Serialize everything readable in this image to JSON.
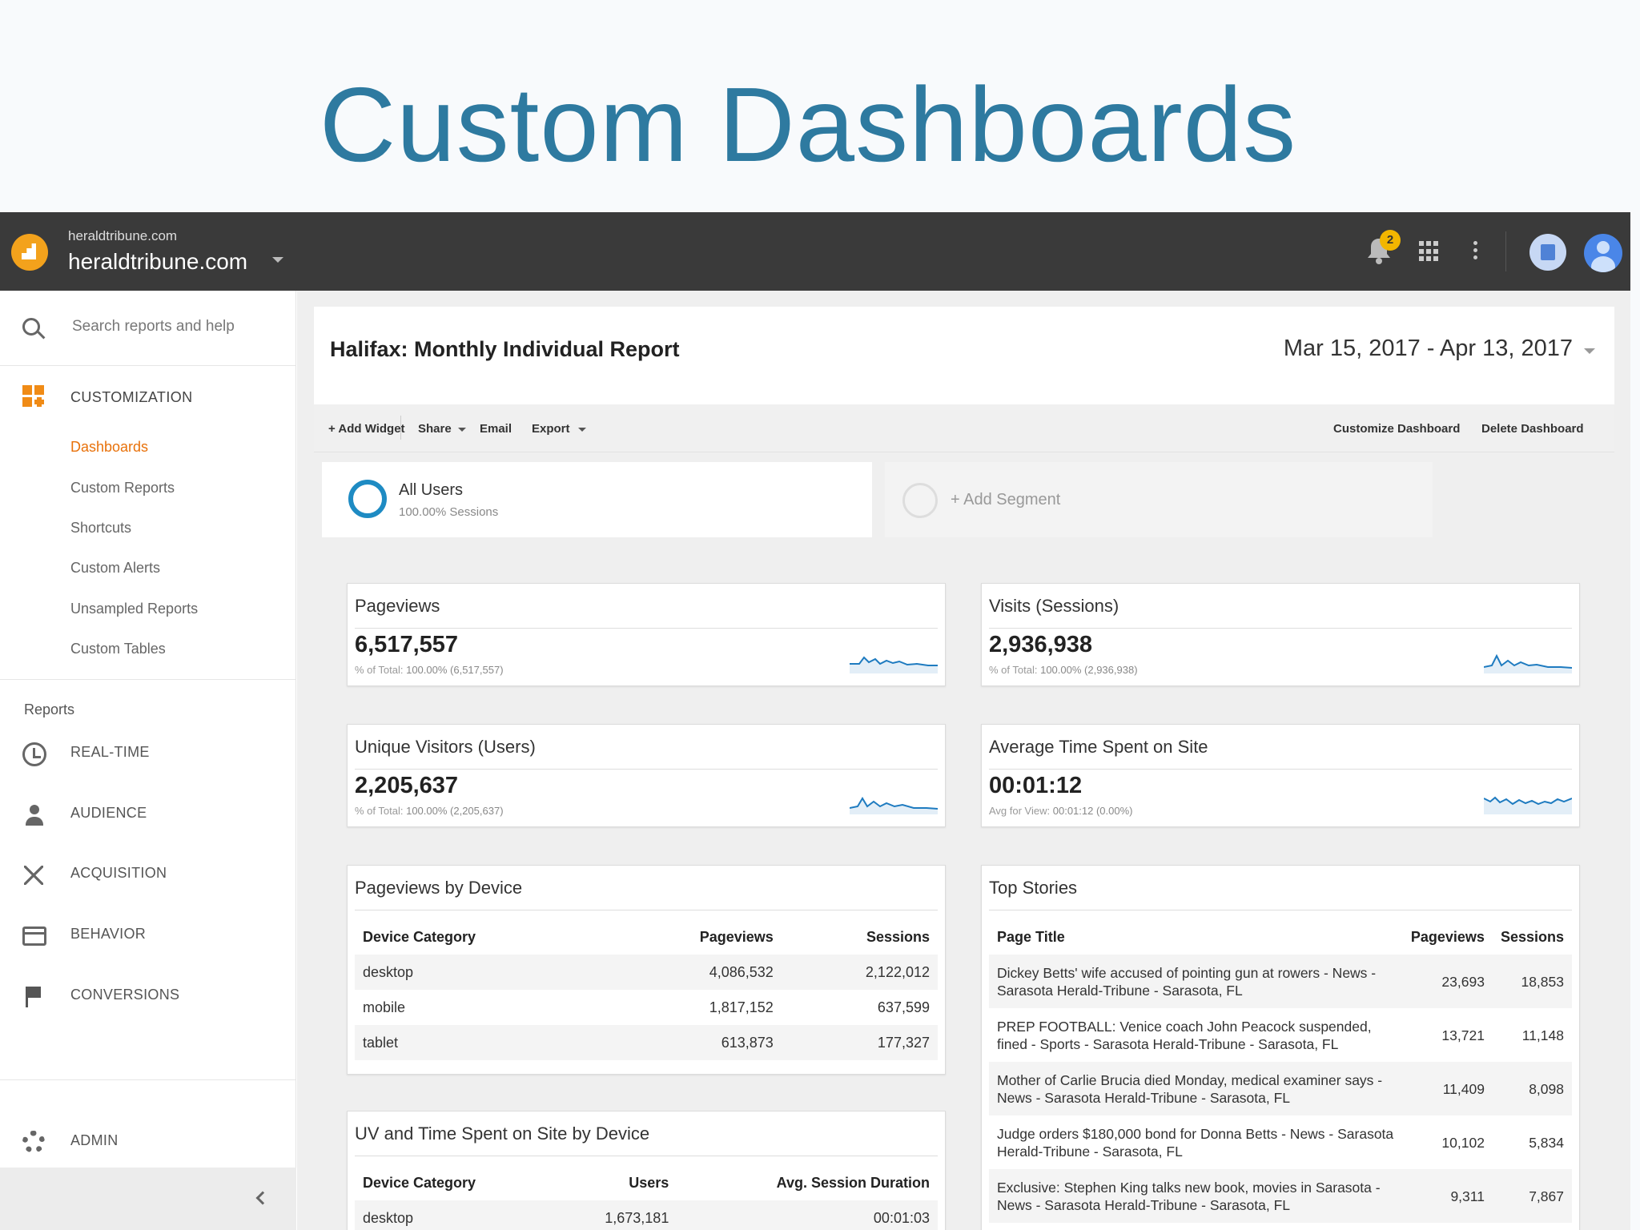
{
  "slide": {
    "title": "Custom Dashboards"
  },
  "topbar": {
    "account_small": "heraldtribune.com",
    "account_name": "heraldtribune.com",
    "notification_count": "2",
    "colors": {
      "bar": "#3a3a3a",
      "logo": "#f3a21c",
      "badge": "#f2b600"
    }
  },
  "sidebar": {
    "search_placeholder": "Search reports and help",
    "customization_label": "CUSTOMIZATION",
    "customization_items": [
      {
        "label": "Dashboards",
        "active": true
      },
      {
        "label": "Custom Reports"
      },
      {
        "label": "Shortcuts"
      },
      {
        "label": "Custom Alerts"
      },
      {
        "label": "Unsampled Reports"
      },
      {
        "label": "Custom Tables"
      }
    ],
    "reports_label": "Reports",
    "nav": [
      {
        "label": "REAL-TIME",
        "icon": "clock-icon"
      },
      {
        "label": "AUDIENCE",
        "icon": "person-icon"
      },
      {
        "label": "ACQUISITION",
        "icon": "acquisition-icon"
      },
      {
        "label": "BEHAVIOR",
        "icon": "behavior-icon"
      },
      {
        "label": "CONVERSIONS",
        "icon": "flag-icon"
      }
    ],
    "admin_label": "ADMIN",
    "accent_color": "#e8710a"
  },
  "dashboard": {
    "title": "Halifax: Monthly Individual Report",
    "date_range": "Mar 15, 2017 - Apr 13, 2017",
    "toolbar": {
      "add_widget": "+ Add Widget",
      "share": "Share",
      "email": "Email",
      "export": "Export",
      "customize": "Customize Dashboard",
      "delete": "Delete Dashboard"
    },
    "segments": {
      "all_users": "All Users",
      "all_users_sub": "100.00% Sessions",
      "add_segment": "+ Add Segment"
    },
    "widgets": {
      "pageviews": {
        "title": "Pageviews",
        "value": "6,517,557",
        "sub_label": "% of Total:",
        "sub_value": "100.00% (6,517,557)"
      },
      "visits": {
        "title": "Visits (Sessions)",
        "value": "2,936,938",
        "sub_label": "% of Total:",
        "sub_value": "100.00% (2,936,938)"
      },
      "unique": {
        "title": "Unique Visitors (Users)",
        "value": "2,205,637",
        "sub_label": "% of Total:",
        "sub_value": "100.00% (2,205,637)"
      },
      "avgtime": {
        "title": "Average Time Spent on Site",
        "value": "00:01:12",
        "sub_label": "Avg for View:",
        "sub_value": "00:01:12 (0.00%)"
      }
    },
    "device_table": {
      "title": "Pageviews by Device",
      "headers": [
        "Device Category",
        "Pageviews",
        "Sessions"
      ],
      "rows": [
        [
          "desktop",
          "4,086,532",
          "2,122,012"
        ],
        [
          "mobile",
          "1,817,152",
          "637,599"
        ],
        [
          "tablet",
          "613,873",
          "177,327"
        ]
      ]
    },
    "uv_table": {
      "title": "UV and Time Spent on Site by Device",
      "headers": [
        "Device Category",
        "Users",
        "Avg. Session Duration"
      ],
      "rows": [
        [
          "desktop",
          "1,673,181",
          "00:01:03"
        ]
      ]
    },
    "stories_table": {
      "title": "Top Stories",
      "headers": [
        "Page Title",
        "Pageviews",
        "Sessions"
      ],
      "rows": [
        [
          "Dickey Betts' wife accused of pointing gun at rowers - News - Sarasota Herald-Tribune - Sarasota, FL",
          "23,693",
          "18,853"
        ],
        [
          "PREP FOOTBALL: Venice coach John Peacock suspended, fined - Sports - Sarasota Herald-Tribune - Sarasota, FL",
          "13,721",
          "11,148"
        ],
        [
          "Mother of Carlie Brucia died Monday, medical examiner says - News - Sarasota Herald-Tribune - Sarasota, FL",
          "11,409",
          "8,098"
        ],
        [
          "Judge orders $180,000 bond for Donna Betts - News - Sarasota Herald-Tribune - Sarasota, FL",
          "10,102",
          "5,834"
        ],
        [
          "Exclusive: Stephen King talks new book, movies in Sarasota - News - Sarasota Herald-Tribune - Sarasota, FL",
          "9,311",
          "7,867"
        ]
      ]
    }
  }
}
